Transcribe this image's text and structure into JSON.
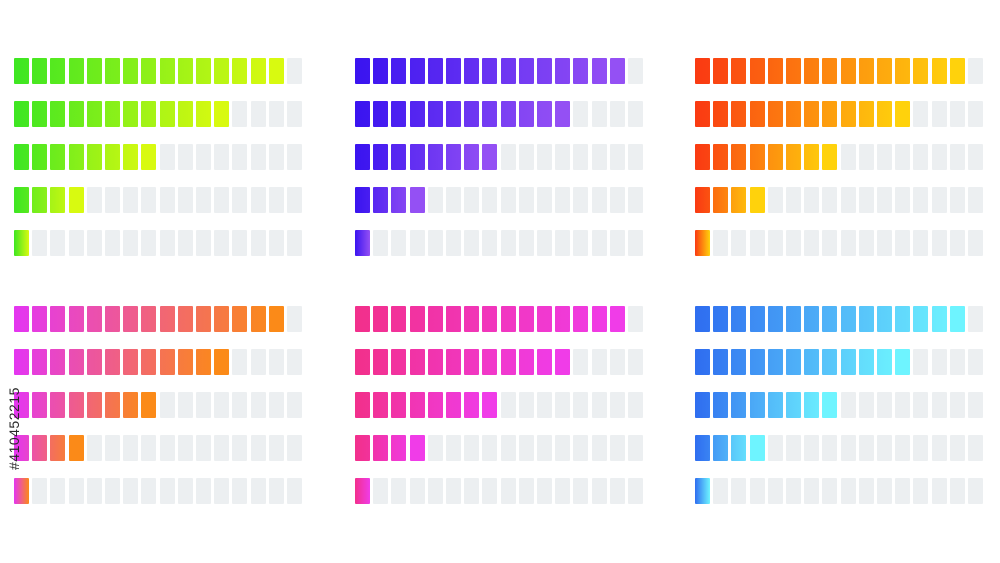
{
  "segments_per_bar": 16,
  "track_color": "#eceff1",
  "stock_id": "#410452215",
  "groups": [
    {
      "name": "green-yellow",
      "start_color": "#3ee622",
      "end_color": "#d8fa10",
      "filled_segments": [
        15,
        12,
        8,
        4,
        1
      ]
    },
    {
      "name": "indigo-violet",
      "start_color": "#3a14f0",
      "end_color": "#9450f4",
      "filled_segments": [
        15,
        12,
        8,
        4,
        1
      ]
    },
    {
      "name": "red-amber",
      "start_color": "#fa3a12",
      "end_color": "#ffd20c",
      "filled_segments": [
        15,
        12,
        8,
        4,
        1
      ]
    },
    {
      "name": "magenta-orange",
      "start_color": "#e436f0",
      "end_color": "#fb8a18",
      "filled_segments": [
        15,
        12,
        8,
        4,
        1
      ]
    },
    {
      "name": "pink-magenta",
      "start_color": "#f2308c",
      "end_color": "#f03ce8",
      "filled_segments": [
        15,
        12,
        8,
        4,
        1
      ]
    },
    {
      "name": "blue-cyan",
      "start_color": "#2f6ef0",
      "end_color": "#6ef4ff",
      "filled_segments": [
        15,
        12,
        8,
        4,
        1
      ]
    }
  ]
}
